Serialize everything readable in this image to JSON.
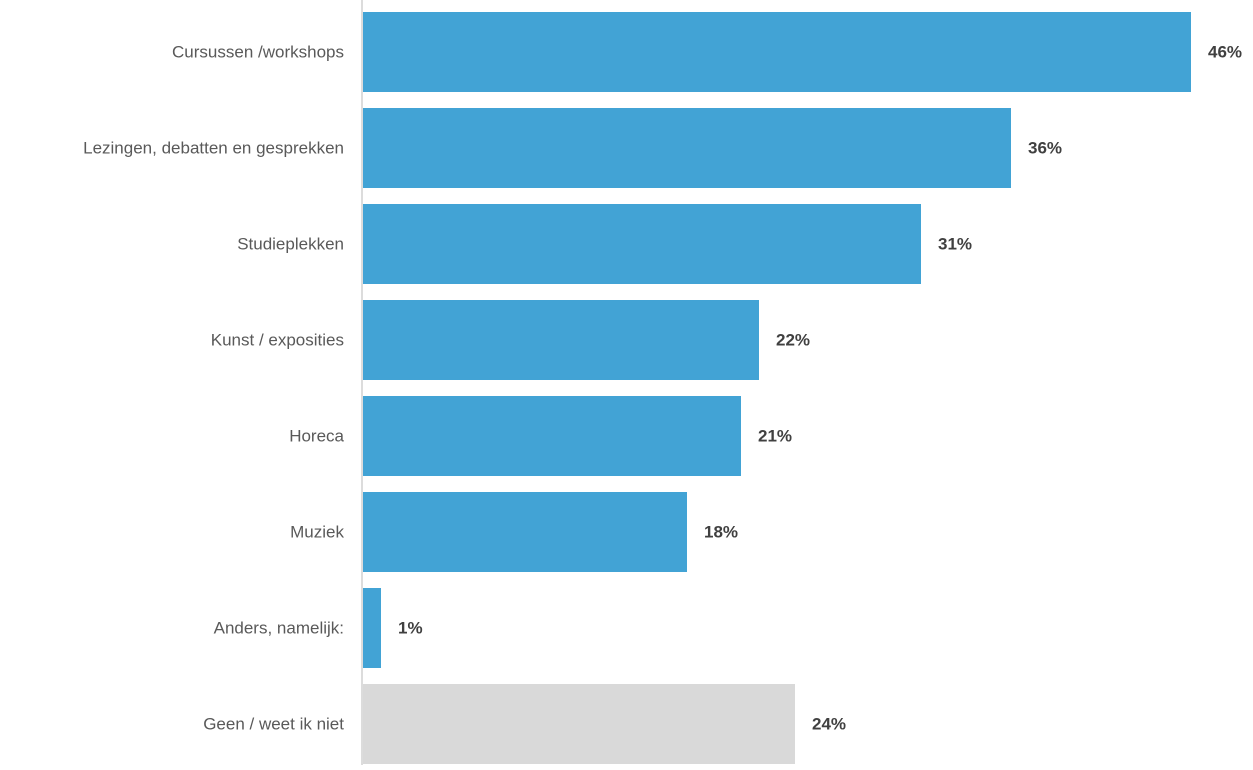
{
  "chart_data": {
    "type": "bar",
    "orientation": "horizontal",
    "categories": [
      "Cursussen /workshops",
      "Lezingen, debatten en gesprekken",
      "Studieplekken",
      "Kunst / exposities",
      "Horeca",
      "Muziek",
      "Anders, namelijk:",
      "Geen / weet ik niet"
    ],
    "values": [
      46,
      36,
      31,
      22,
      21,
      18,
      1,
      24
    ],
    "value_labels": [
      "46%",
      "36%",
      "31%",
      "22%",
      "21%",
      "18%",
      "1%",
      "24%"
    ],
    "colors": [
      "#42A3D5",
      "#42A3D5",
      "#42A3D5",
      "#42A3D5",
      "#42A3D5",
      "#42A3D5",
      "#42A3D5",
      "#D9D9D9"
    ],
    "axis_color": "#D0D0D0",
    "title": "",
    "xlabel": "",
    "ylabel": "",
    "grid": false,
    "legend": "none"
  }
}
